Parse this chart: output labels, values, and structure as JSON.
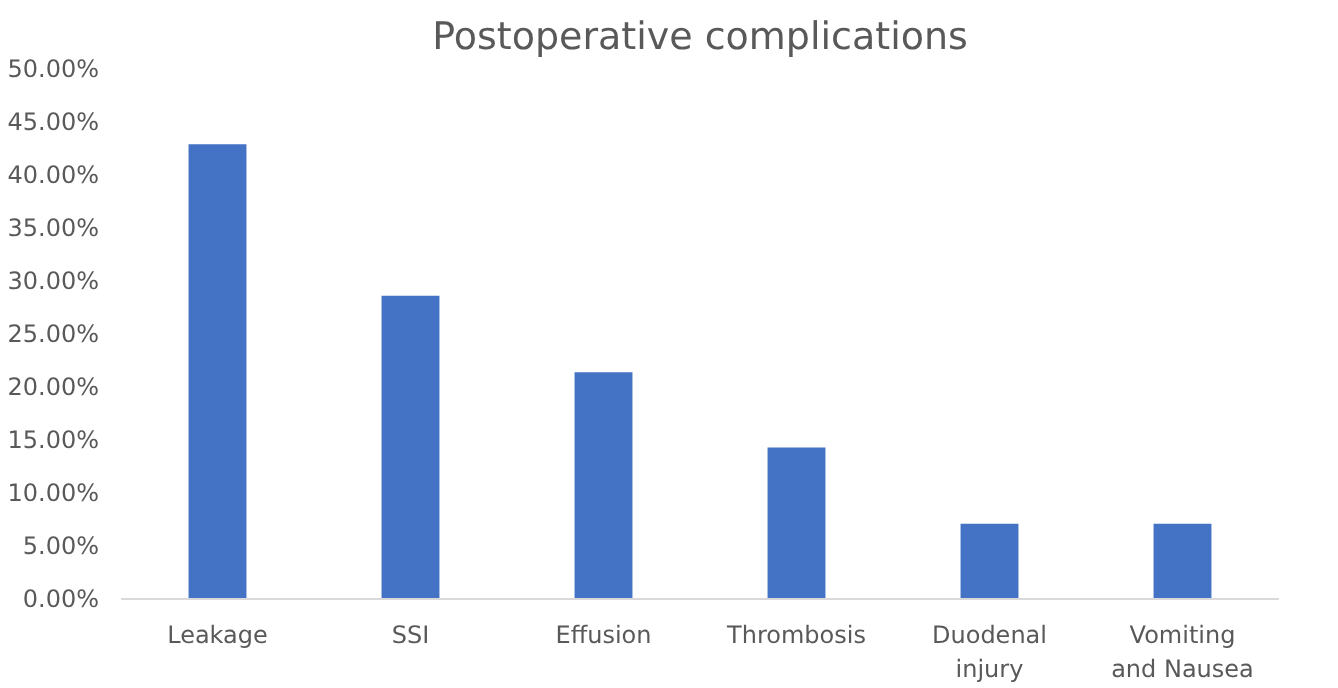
{
  "chart_data": {
    "type": "bar",
    "title": "Postoperative complications",
    "categories": [
      "Leakage",
      "SSI",
      "Effusion",
      "Thrombosis",
      "Duodenal injury",
      "Vomiting and Nausea"
    ],
    "values": [
      42.9,
      28.6,
      21.4,
      14.3,
      7.1,
      7.1
    ],
    "color": "#4472c4",
    "ylim": [
      0,
      50
    ],
    "yticks": [
      {
        "value": 0,
        "label": "0.00%"
      },
      {
        "value": 5,
        "label": "5.00%"
      },
      {
        "value": 10,
        "label": "10.00%"
      },
      {
        "value": 15,
        "label": "15.00%"
      },
      {
        "value": 20,
        "label": "20.00%"
      },
      {
        "value": 25,
        "label": "25.00%"
      },
      {
        "value": 30,
        "label": "30.00%"
      },
      {
        "value": 35,
        "label": "35.00%"
      },
      {
        "value": 40,
        "label": "40.00%"
      },
      {
        "value": 45,
        "label": "45.00%"
      },
      {
        "value": 50,
        "label": "50.00%"
      }
    ],
    "grid": false
  }
}
